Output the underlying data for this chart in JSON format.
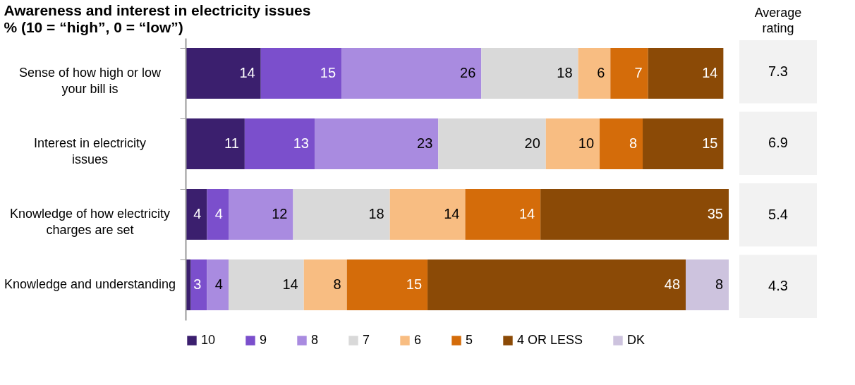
{
  "chart_data": [
    {
      "type": "bar",
      "orientation": "horizontal",
      "stacked": true,
      "title": "Awareness and interest in electricity issues",
      "subtitle": "% (10 = “high”, 0 = “low”)",
      "categories": [
        "Sense of how high or low your bill is",
        "Interest in electricity issues",
        "Knowledge of how electricity charges are set",
        "Knowledge and understanding"
      ],
      "series": [
        {
          "name": "10",
          "color": "#3b1f6e",
          "values": [
            14,
            11,
            4,
            1
          ],
          "value_labels": [
            "14",
            "11",
            "4",
            null
          ]
        },
        {
          "name": "9",
          "color": "#7b4fcc",
          "values": [
            15,
            13,
            4,
            3
          ],
          "value_labels": [
            "15",
            "13",
            "4",
            "3"
          ]
        },
        {
          "name": "8",
          "color": "#a98be0",
          "values": [
            26,
            23,
            12,
            4
          ],
          "value_labels": [
            "26",
            "23",
            "12",
            "4"
          ]
        },
        {
          "name": "7",
          "color": "#d9d9d9",
          "values": [
            18,
            20,
            18,
            14
          ],
          "value_labels": [
            "18",
            "20",
            "18",
            "14"
          ]
        },
        {
          "name": "6",
          "color": "#f8bd82",
          "values": [
            6,
            10,
            14,
            8
          ],
          "value_labels": [
            "6",
            "10",
            "14",
            "8"
          ]
        },
        {
          "name": "5",
          "color": "#d46c0a",
          "values": [
            7,
            8,
            14,
            15
          ],
          "value_labels": [
            "7",
            "8",
            "14",
            "15"
          ]
        },
        {
          "name": "4 OR LESS",
          "color": "#8b4a06",
          "values": [
            14,
            15,
            35,
            48
          ],
          "value_labels": [
            "14",
            "15",
            "35",
            "48"
          ]
        },
        {
          "name": "DK",
          "color": "#cdc3de",
          "values": [
            null,
            null,
            null,
            8
          ],
          "value_labels": [
            null,
            null,
            null,
            "8"
          ]
        }
      ],
      "legend": "bottom",
      "grid": false
    },
    {
      "type": "other",
      "title": "Average rating",
      "annotations": [
        "7.3",
        "6.9",
        "5.4",
        "4.3"
      ]
    }
  ]
}
